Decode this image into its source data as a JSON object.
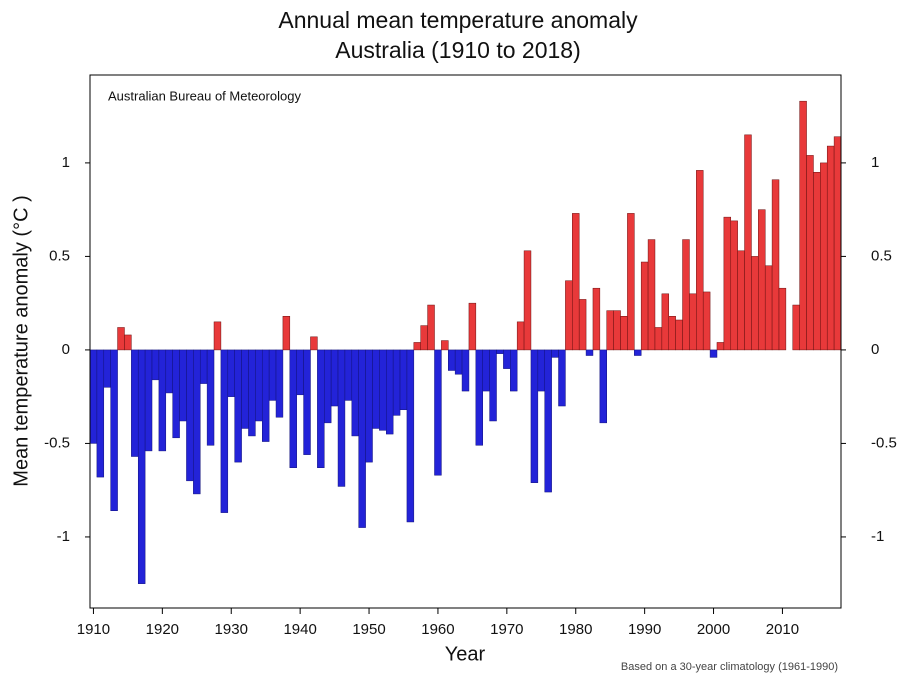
{
  "chart_data": {
    "type": "bar",
    "title": "Annual mean temperature anomaly",
    "subtitle": "Australia (1910 to 2018)",
    "source": "Australian Bureau of Meteorology",
    "note": "Based on a 30-year climatology (1961-1990)",
    "x_label": "Year",
    "y_label": "Mean temperature anomaly (°C )",
    "positive_color": "#e8393a",
    "negative_color": "#2323d8",
    "x": [
      1910,
      1911,
      1912,
      1913,
      1914,
      1915,
      1916,
      1917,
      1918,
      1919,
      1920,
      1921,
      1922,
      1923,
      1924,
      1925,
      1926,
      1927,
      1928,
      1929,
      1930,
      1931,
      1932,
      1933,
      1934,
      1935,
      1936,
      1937,
      1938,
      1939,
      1940,
      1941,
      1942,
      1943,
      1944,
      1945,
      1946,
      1947,
      1948,
      1949,
      1950,
      1951,
      1952,
      1953,
      1954,
      1955,
      1956,
      1957,
      1958,
      1959,
      1960,
      1961,
      1962,
      1963,
      1964,
      1965,
      1966,
      1967,
      1968,
      1969,
      1970,
      1971,
      1972,
      1973,
      1974,
      1975,
      1976,
      1977,
      1978,
      1979,
      1980,
      1981,
      1982,
      1983,
      1984,
      1985,
      1986,
      1987,
      1988,
      1989,
      1990,
      1991,
      1992,
      1993,
      1994,
      1995,
      1996,
      1997,
      1998,
      1999,
      2000,
      2001,
      2002,
      2003,
      2004,
      2005,
      2006,
      2007,
      2008,
      2009,
      2010,
      2011,
      2012,
      2013,
      2014,
      2015,
      2016,
      2017,
      2018
    ],
    "values": [
      -0.5,
      -0.68,
      -0.2,
      -0.86,
      0.12,
      0.08,
      -0.57,
      -1.25,
      -0.54,
      -0.16,
      -0.54,
      -0.23,
      -0.47,
      -0.38,
      -0.7,
      -0.77,
      -0.18,
      -0.51,
      0.15,
      -0.87,
      -0.25,
      -0.6,
      -0.42,
      -0.46,
      -0.38,
      -0.49,
      -0.27,
      -0.36,
      0.18,
      -0.63,
      -0.24,
      -0.56,
      0.07,
      -0.63,
      -0.39,
      -0.3,
      -0.73,
      -0.27,
      -0.46,
      -0.95,
      -0.6,
      -0.42,
      -0.43,
      -0.45,
      -0.35,
      -0.32,
      -0.92,
      0.04,
      0.13,
      0.24,
      -0.67,
      0.05,
      -0.11,
      -0.13,
      -0.22,
      0.25,
      -0.51,
      -0.22,
      -0.38,
      -0.02,
      -0.1,
      -0.22,
      0.15,
      0.53,
      -0.71,
      -0.22,
      -0.76,
      -0.04,
      -0.3,
      0.37,
      0.73,
      0.27,
      -0.03,
      0.33,
      -0.39,
      0.21,
      0.21,
      0.18,
      0.73,
      -0.03,
      0.47,
      0.59,
      0.12,
      0.3,
      0.18,
      0.16,
      0.59,
      0.3,
      0.96,
      0.31,
      -0.04,
      0.04,
      0.71,
      0.69,
      0.53,
      1.15,
      0.5,
      0.75,
      0.45,
      0.91,
      0.33,
      0,
      0.24,
      1.33,
      1.04,
      0.95,
      1.0,
      1.09,
      1.14
    ],
    "xlim": [
      1909.5,
      2018.5
    ],
    "xticks": [
      1910,
      1920,
      1930,
      1940,
      1950,
      1960,
      1970,
      1980,
      1990,
      2000,
      2010
    ],
    "ylim": [
      -1.38,
      1.47
    ],
    "yticks": [
      -1,
      -0.5,
      0,
      0.5,
      1
    ]
  }
}
